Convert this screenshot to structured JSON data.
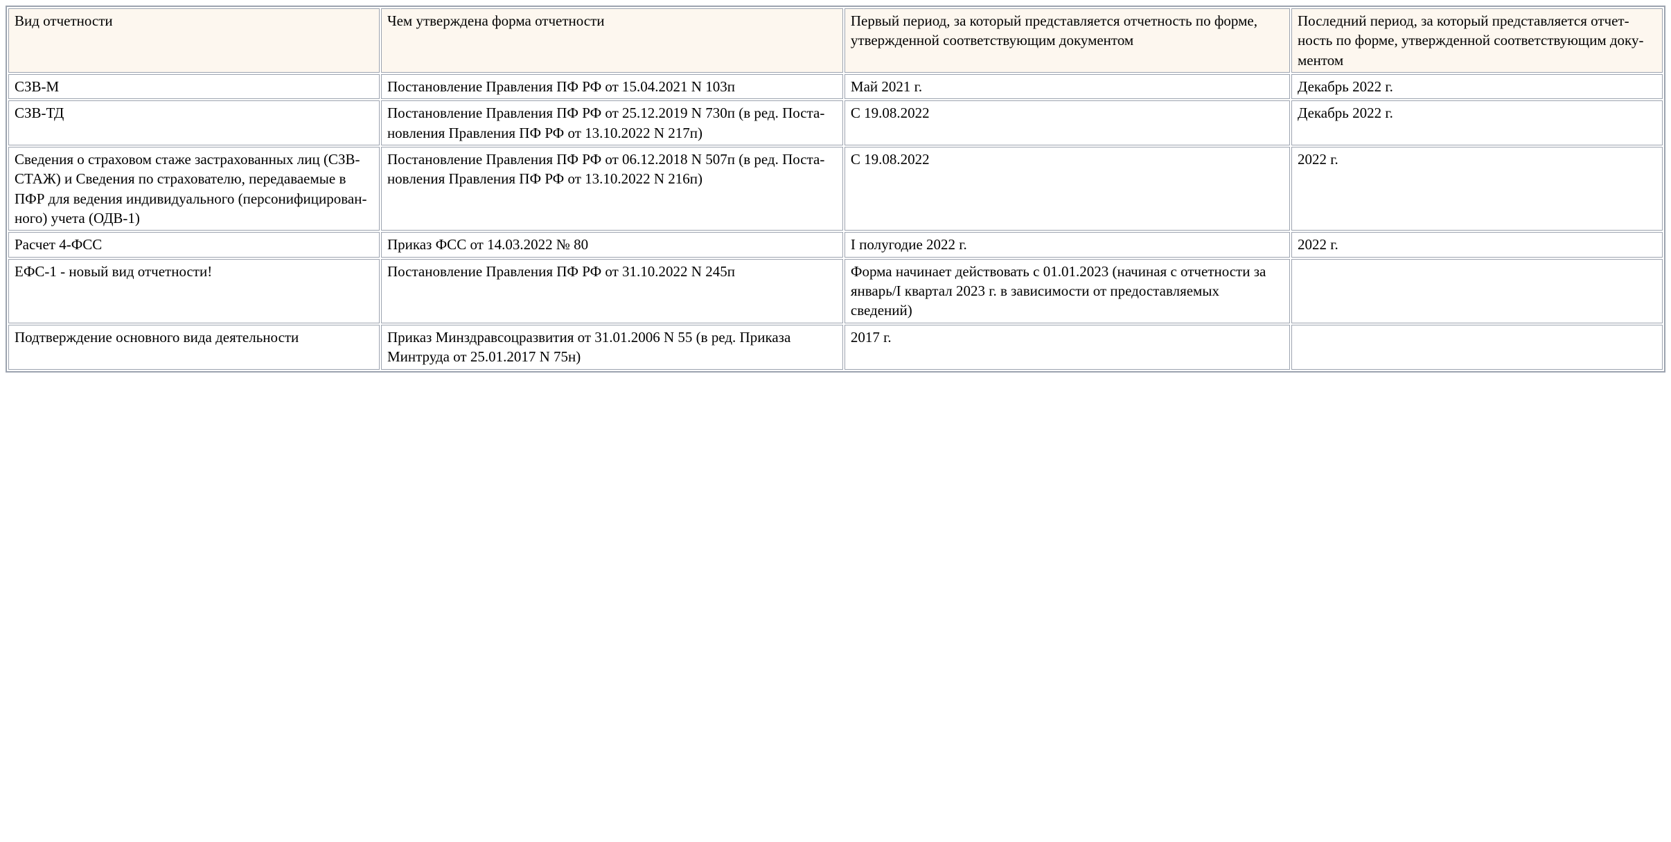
{
  "table": {
    "header_bg": "#fdf7ef",
    "border_color": "#9ca3af",
    "font_family": "Georgia, 'Times New Roman', serif",
    "font_size": 21,
    "columns": [
      {
        "label": "Вид отчетности",
        "width_pct": 22.5
      },
      {
        "label": "Чем утверждена форма отчетности",
        "width_pct": 28
      },
      {
        "label": "Первый период, за который пред­ставляется отчетность по форме, утвержденной соответствующим документом",
        "width_pct": 27
      },
      {
        "label": "Последний период, за кото­рый представляется отчет­ность по форме, утвержден­ной соответствующим доку­ментом",
        "width_pct": 22.5
      }
    ],
    "rows": [
      {
        "c0": "СЗВ-М",
        "c1": "Постановление Правления ПФ РФ от 15.04.2021 N 103п",
        "c2": "Май 2021 г.",
        "c3": "Декабрь 2022 г."
      },
      {
        "c0": "СЗВ-ТД",
        "c1": "Постановление Правления ПФ РФ от 25.12.2019 N 730п (в ред. Поста­новления Правления ПФ РФ от 13.10.2022 N 217п)",
        "c2": "С 19.08.2022",
        "c3": "Декабрь 2022 г."
      },
      {
        "c0": "Сведения о страховом стаже застрахованных лиц (СЗВ-СТАЖ) и Сведения по стра­хователю, передаваемые в ПФР для ведения индивиду­ального (персонифицирован­ного) учета (ОДВ-1)",
        "c1": "Постановление Правления ПФ РФ от 06.12.2018 N 507п (в ред. Поста­новления Правления ПФ РФ от 13.10.2022 N 216п)",
        "c2": "С 19.08.2022",
        "c3": "2022 г."
      },
      {
        "c0": "Расчет 4-ФСС",
        "c1": "Приказ ФСС от 14.03.2022 № 80",
        "c2": "I полугодие 2022 г.",
        "c3": "2022 г."
      },
      {
        "c0": "ЕФС-1 - новый вид отчетно­сти!",
        "c1": "Постановление Правления ПФ РФ от 31.10.2022 N 245п",
        "c2": "Форма начинает действовать с 01.01.2023 (начиная с отчетности за январь/I квартал 2023 г. в зависимо­сти от предоставляемых сведений)",
        "c3": ""
      },
      {
        "c0": "Подтверждение основного вида деятельности",
        "c1": "Приказ Минздравсоцразвития от 31.01.2006 N 55 (в ред. Приказа Минтруда от 25.01.2017 N 75н)",
        "c2": "2017 г.",
        "c3": ""
      }
    ]
  }
}
